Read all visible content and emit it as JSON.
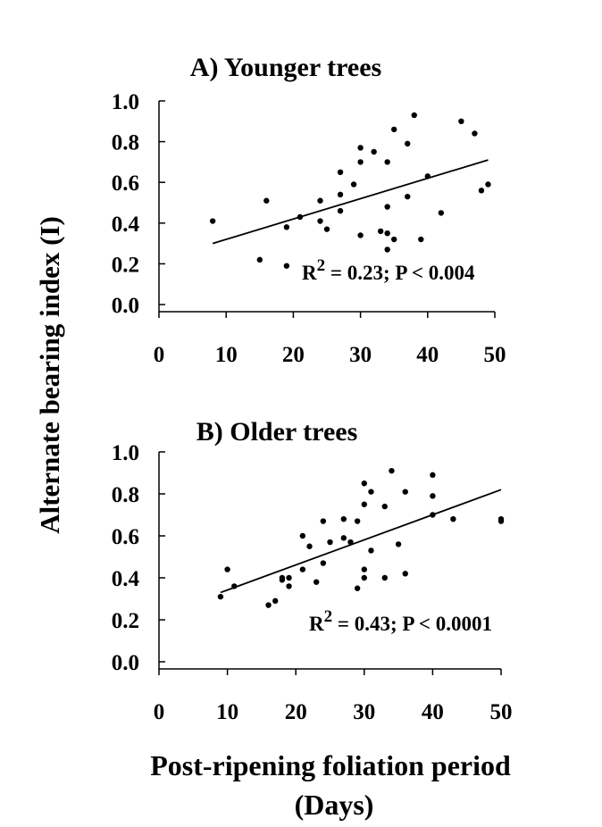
{
  "ylabel": "Alternate bearing index (I)",
  "xlabel_line1": "Post-ripening foliation period",
  "xlabel_line2": "(Days)",
  "chart_data": [
    {
      "type": "scatter",
      "title": "A) Younger trees",
      "xlim": [
        0,
        50
      ],
      "ylim": [
        0,
        1.0
      ],
      "xticks": [
        "0",
        "10",
        "20",
        "30",
        "40",
        "50"
      ],
      "yticks": [
        "0.0",
        "0.2",
        "0.4",
        "0.6",
        "0.8",
        "1.0"
      ],
      "annotation_prefix": "R",
      "annotation_sup": "2",
      "annotation_suffix": " = 0.23; P < 0.004",
      "fit_line": {
        "x": [
          8,
          49
        ],
        "y": [
          0.3,
          0.71
        ]
      },
      "points": [
        {
          "x": 8,
          "y": 0.41
        },
        {
          "x": 15,
          "y": 0.22
        },
        {
          "x": 16,
          "y": 0.51
        },
        {
          "x": 19,
          "y": 0.38
        },
        {
          "x": 19,
          "y": 0.19
        },
        {
          "x": 21,
          "y": 0.43
        },
        {
          "x": 24,
          "y": 0.51
        },
        {
          "x": 24,
          "y": 0.41
        },
        {
          "x": 25,
          "y": 0.37
        },
        {
          "x": 27,
          "y": 0.65
        },
        {
          "x": 27,
          "y": 0.54
        },
        {
          "x": 27,
          "y": 0.46
        },
        {
          "x": 29,
          "y": 0.59
        },
        {
          "x": 30,
          "y": 0.77
        },
        {
          "x": 30,
          "y": 0.7
        },
        {
          "x": 30,
          "y": 0.34
        },
        {
          "x": 32,
          "y": 0.75
        },
        {
          "x": 33,
          "y": 0.36
        },
        {
          "x": 34,
          "y": 0.7
        },
        {
          "x": 34,
          "y": 0.48
        },
        {
          "x": 34,
          "y": 0.35
        },
        {
          "x": 34,
          "y": 0.27
        },
        {
          "x": 35,
          "y": 0.86
        },
        {
          "x": 35,
          "y": 0.32
        },
        {
          "x": 37,
          "y": 0.79
        },
        {
          "x": 37,
          "y": 0.53
        },
        {
          "x": 38,
          "y": 0.93
        },
        {
          "x": 39,
          "y": 0.32
        },
        {
          "x": 40,
          "y": 0.63
        },
        {
          "x": 42,
          "y": 0.45
        },
        {
          "x": 45,
          "y": 0.9
        },
        {
          "x": 47,
          "y": 0.84
        },
        {
          "x": 48,
          "y": 0.56
        },
        {
          "x": 49,
          "y": 0.59
        }
      ]
    },
    {
      "type": "scatter",
      "title": "B) Older trees",
      "xlim": [
        0,
        50
      ],
      "ylim": [
        0,
        1.0
      ],
      "xticks": [
        "0",
        "10",
        "20",
        "30",
        "40",
        "50"
      ],
      "yticks": [
        "0.0",
        "0.2",
        "0.4",
        "0.6",
        "0.8",
        "1.0"
      ],
      "annotation_prefix": "R",
      "annotation_sup": "2",
      "annotation_suffix": " = 0.43; P < 0.0001",
      "fit_line": {
        "x": [
          9,
          50
        ],
        "y": [
          0.33,
          0.82
        ]
      },
      "points": [
        {
          "x": 9,
          "y": 0.31
        },
        {
          "x": 10,
          "y": 0.44
        },
        {
          "x": 11,
          "y": 0.36
        },
        {
          "x": 16,
          "y": 0.27
        },
        {
          "x": 17,
          "y": 0.29
        },
        {
          "x": 18,
          "y": 0.4
        },
        {
          "x": 18,
          "y": 0.39
        },
        {
          "x": 19,
          "y": 0.36
        },
        {
          "x": 19,
          "y": 0.4
        },
        {
          "x": 21,
          "y": 0.6
        },
        {
          "x": 21,
          "y": 0.44
        },
        {
          "x": 22,
          "y": 0.55
        },
        {
          "x": 23,
          "y": 0.38
        },
        {
          "x": 24,
          "y": 0.67
        },
        {
          "x": 24,
          "y": 0.47
        },
        {
          "x": 25,
          "y": 0.57
        },
        {
          "x": 27,
          "y": 0.68
        },
        {
          "x": 27,
          "y": 0.59
        },
        {
          "x": 28,
          "y": 0.57
        },
        {
          "x": 29,
          "y": 0.67
        },
        {
          "x": 29,
          "y": 0.35
        },
        {
          "x": 30,
          "y": 0.85
        },
        {
          "x": 30,
          "y": 0.75
        },
        {
          "x": 30,
          "y": 0.44
        },
        {
          "x": 30,
          "y": 0.4
        },
        {
          "x": 31,
          "y": 0.81
        },
        {
          "x": 31,
          "y": 0.53
        },
        {
          "x": 33,
          "y": 0.74
        },
        {
          "x": 33,
          "y": 0.4
        },
        {
          "x": 34,
          "y": 0.91
        },
        {
          "x": 35,
          "y": 0.56
        },
        {
          "x": 36,
          "y": 0.81
        },
        {
          "x": 36,
          "y": 0.42
        },
        {
          "x": 40,
          "y": 0.89
        },
        {
          "x": 40,
          "y": 0.79
        },
        {
          "x": 40,
          "y": 0.7
        },
        {
          "x": 43,
          "y": 0.68
        },
        {
          "x": 50,
          "y": 0.68
        },
        {
          "x": 50,
          "y": 0.67
        }
      ]
    }
  ]
}
